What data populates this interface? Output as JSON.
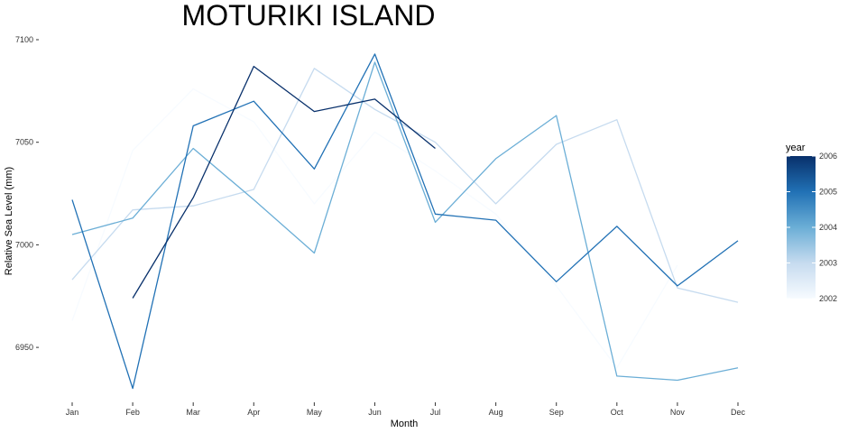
{
  "chart_data": {
    "type": "line",
    "title": "MOTURIKI ISLAND",
    "xlabel": "Month",
    "ylabel": "Relative Sea Level (mm)",
    "categories": [
      "Jan",
      "Feb",
      "Mar",
      "Apr",
      "May",
      "Jun",
      "Jul",
      "Aug",
      "Sep",
      "Oct",
      "Nov",
      "Dec"
    ],
    "ylim": [
      6930,
      7100
    ],
    "yticks": [
      6950,
      7000,
      7050,
      7100
    ],
    "grid": false,
    "legend": {
      "title": "year",
      "placement": "right",
      "type": "colorbar",
      "range": [
        2002,
        2006
      ],
      "ticks": [
        2002,
        2003,
        2004,
        2005,
        2006
      ],
      "color_low": "#f7fbff",
      "color_high": "#08306b"
    },
    "series": [
      {
        "year": 2002,
        "values": [
          6963,
          7046,
          7076,
          7060,
          7020,
          7055,
          7036,
          7015,
          6980,
          6940,
          6990,
          null
        ]
      },
      {
        "year": 2003,
        "values": [
          6983,
          7017,
          7019,
          7027,
          7086,
          7066,
          7050,
          7020,
          7049,
          7061,
          6979,
          6972
        ]
      },
      {
        "year": 2004,
        "values": [
          7005,
          7013,
          7047,
          7022,
          6996,
          7089,
          7011,
          7042,
          7063,
          6936,
          6934,
          6940
        ]
      },
      {
        "year": 2005,
        "values": [
          7022,
          6930,
          7058,
          7070,
          7037,
          7093,
          7015,
          7012,
          6982,
          7009,
          6980,
          7002
        ]
      },
      {
        "year": 2006,
        "values": [
          null,
          6974,
          7023,
          7087,
          7065,
          7071,
          7047,
          null,
          null,
          null,
          null,
          null
        ]
      }
    ]
  }
}
